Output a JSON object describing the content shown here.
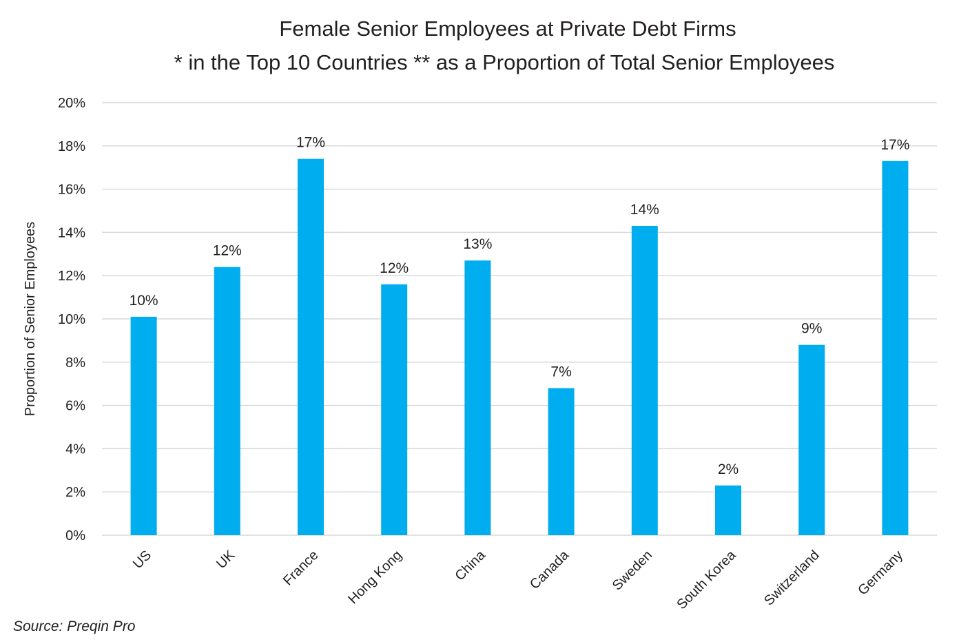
{
  "chart_data": {
    "type": "bar",
    "title": "Female Senior Employees at Private Debt Firms",
    "subtitle": "* in the Top 10 Countries ** as a Proportion of Total Senior Employees",
    "xlabel": "",
    "ylabel": "Proportion of Senior Employees",
    "categories": [
      "US",
      "UK",
      "France",
      "Hong Kong",
      "China",
      "Canada",
      "Sweden",
      "South Korea",
      "Switzerland",
      "Germany"
    ],
    "values": [
      10.1,
      12.4,
      17.4,
      11.6,
      12.7,
      6.8,
      14.3,
      2.3,
      8.8,
      17.3
    ],
    "data_labels": [
      "10%",
      "12%",
      "17%",
      "12%",
      "13%",
      "7%",
      "14%",
      "2%",
      "9%",
      "17%"
    ],
    "ylim": [
      0,
      20
    ],
    "yticks": [
      0,
      2,
      4,
      6,
      8,
      10,
      12,
      14,
      16,
      18,
      20
    ],
    "ytick_labels": [
      "0%",
      "2%",
      "4%",
      "6%",
      "8%",
      "10%",
      "12%",
      "14%",
      "16%",
      "18%",
      "20%"
    ],
    "grid": true,
    "bar_color": "#00aeef",
    "source": "Source: Preqin Pro"
  }
}
